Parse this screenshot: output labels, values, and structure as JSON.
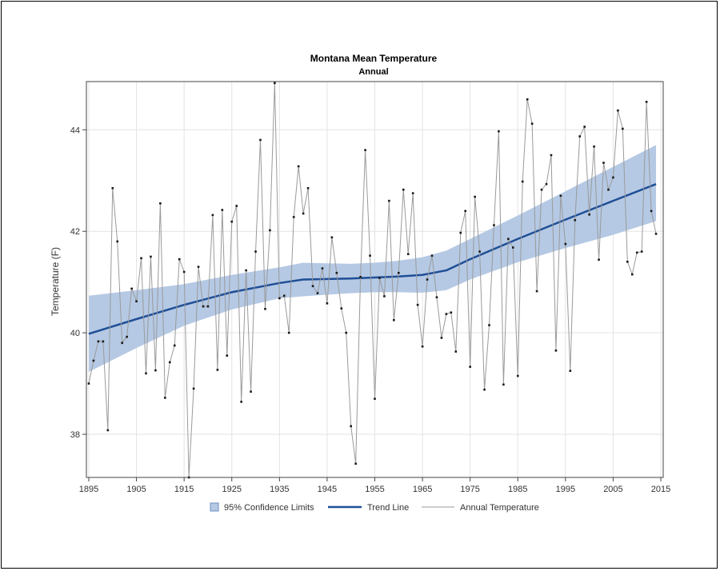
{
  "chart_data": {
    "type": "line",
    "title": "Montana Mean Temperature",
    "subtitle": "Annual",
    "xlabel": "",
    "ylabel": "Temperature (F)",
    "xlim": [
      1894.5,
      2015.5
    ],
    "ylim": [
      37.15,
      44.95
    ],
    "x_ticks": [
      1895,
      1905,
      1915,
      1925,
      1935,
      1945,
      1955,
      1965,
      1975,
      1985,
      1995,
      2005,
      2015
    ],
    "y_ticks": [
      38,
      40,
      42,
      44
    ],
    "grid": true,
    "legend_position": "bottom",
    "legend": [
      "95% Confidence Limits",
      "Trend Line",
      "Annual Temperature"
    ],
    "colors": {
      "band": "#b5c9e4",
      "trend": "#1f4e96",
      "annual": "#9a9a9a",
      "marker": "#1a1a1a",
      "grid": "#e3e3e3"
    },
    "series": [
      {
        "name": "Annual Temperature",
        "x": [
          1895,
          1896,
          1897,
          1898,
          1899,
          1900,
          1901,
          1902,
          1903,
          1904,
          1905,
          1906,
          1907,
          1908,
          1909,
          1910,
          1911,
          1912,
          1913,
          1914,
          1915,
          1916,
          1917,
          1918,
          1919,
          1920,
          1921,
          1922,
          1923,
          1924,
          1925,
          1926,
          1927,
          1928,
          1929,
          1930,
          1931,
          1932,
          1933,
          1934,
          1935,
          1936,
          1937,
          1938,
          1939,
          1940,
          1941,
          1942,
          1943,
          1944,
          1945,
          1946,
          1947,
          1948,
          1949,
          1950,
          1951,
          1952,
          1953,
          1954,
          1955,
          1956,
          1957,
          1958,
          1959,
          1960,
          1961,
          1962,
          1963,
          1964,
          1965,
          1966,
          1967,
          1968,
          1969,
          1970,
          1971,
          1972,
          1973,
          1974,
          1975,
          1976,
          1977,
          1978,
          1979,
          1980,
          1981,
          1982,
          1983,
          1984,
          1985,
          1986,
          1987,
          1988,
          1989,
          1990,
          1991,
          1992,
          1993,
          1994,
          1995,
          1996,
          1997,
          1998,
          1999,
          2000,
          2001,
          2002,
          2003,
          2004,
          2005,
          2006,
          2007,
          2008,
          2009,
          2010,
          2011,
          2012,
          2013,
          2014
        ],
        "y": [
          39.0,
          39.45,
          39.83,
          39.83,
          38.08,
          42.85,
          41.8,
          39.8,
          39.92,
          40.87,
          40.62,
          41.47,
          39.2,
          41.5,
          39.26,
          42.55,
          38.72,
          39.42,
          39.75,
          41.45,
          41.2,
          37.15,
          38.9,
          41.3,
          40.52,
          40.52,
          42.32,
          39.27,
          42.42,
          39.55,
          42.19,
          42.5,
          38.64,
          41.23,
          38.84,
          41.6,
          43.8,
          40.47,
          42.02,
          44.92,
          40.68,
          40.73,
          40.0,
          42.28,
          43.28,
          42.35,
          42.85,
          40.92,
          40.78,
          41.27,
          40.58,
          41.88,
          41.18,
          40.48,
          40.0,
          38.16,
          37.42,
          41.1,
          43.6,
          41.52,
          38.7,
          41.08,
          40.72,
          42.6,
          40.25,
          41.18,
          42.82,
          41.55,
          42.75,
          40.55,
          39.73,
          41.05,
          41.52,
          40.7,
          39.9,
          40.37,
          40.4,
          39.63,
          41.97,
          42.4,
          39.33,
          42.68,
          41.6,
          38.88,
          40.15,
          42.12,
          43.97,
          38.98,
          41.85,
          41.68,
          39.15,
          42.98,
          44.6,
          44.12,
          40.82,
          42.82,
          42.93,
          43.5,
          39.65,
          42.7,
          41.75,
          39.25,
          42.22,
          43.87,
          44.06,
          42.33,
          43.67,
          41.44,
          43.35,
          42.82,
          43.06,
          44.38,
          44.02,
          41.4,
          41.15,
          41.58,
          41.6,
          44.55,
          42.4,
          41.95
        ]
      },
      {
        "name": "Trend Line",
        "x": [
          1895,
          1905,
          1915,
          1925,
          1935,
          1940,
          1945,
          1950,
          1955,
          1960,
          1965,
          1970,
          1975,
          1985,
          1995,
          2005,
          2014
        ],
        "y": [
          39.98,
          40.27,
          40.55,
          40.8,
          40.98,
          41.05,
          41.06,
          41.07,
          41.09,
          41.11,
          41.14,
          41.23,
          41.45,
          41.85,
          42.23,
          42.6,
          42.93
        ]
      },
      {
        "name": "95% Confidence Limits",
        "x": [
          1895,
          1905,
          1915,
          1925,
          1935,
          1940,
          1945,
          1950,
          1955,
          1960,
          1965,
          1970,
          1975,
          1985,
          1995,
          2005,
          2014
        ],
        "lower": [
          39.23,
          39.7,
          40.14,
          40.46,
          40.68,
          40.72,
          40.75,
          40.78,
          40.8,
          40.8,
          40.79,
          40.84,
          41.05,
          41.39,
          41.67,
          41.93,
          42.2
        ],
        "upper": [
          40.73,
          40.84,
          40.96,
          41.14,
          41.29,
          41.38,
          41.37,
          41.36,
          41.38,
          41.42,
          41.49,
          41.62,
          41.85,
          42.31,
          42.79,
          43.27,
          43.7
        ]
      }
    ]
  }
}
